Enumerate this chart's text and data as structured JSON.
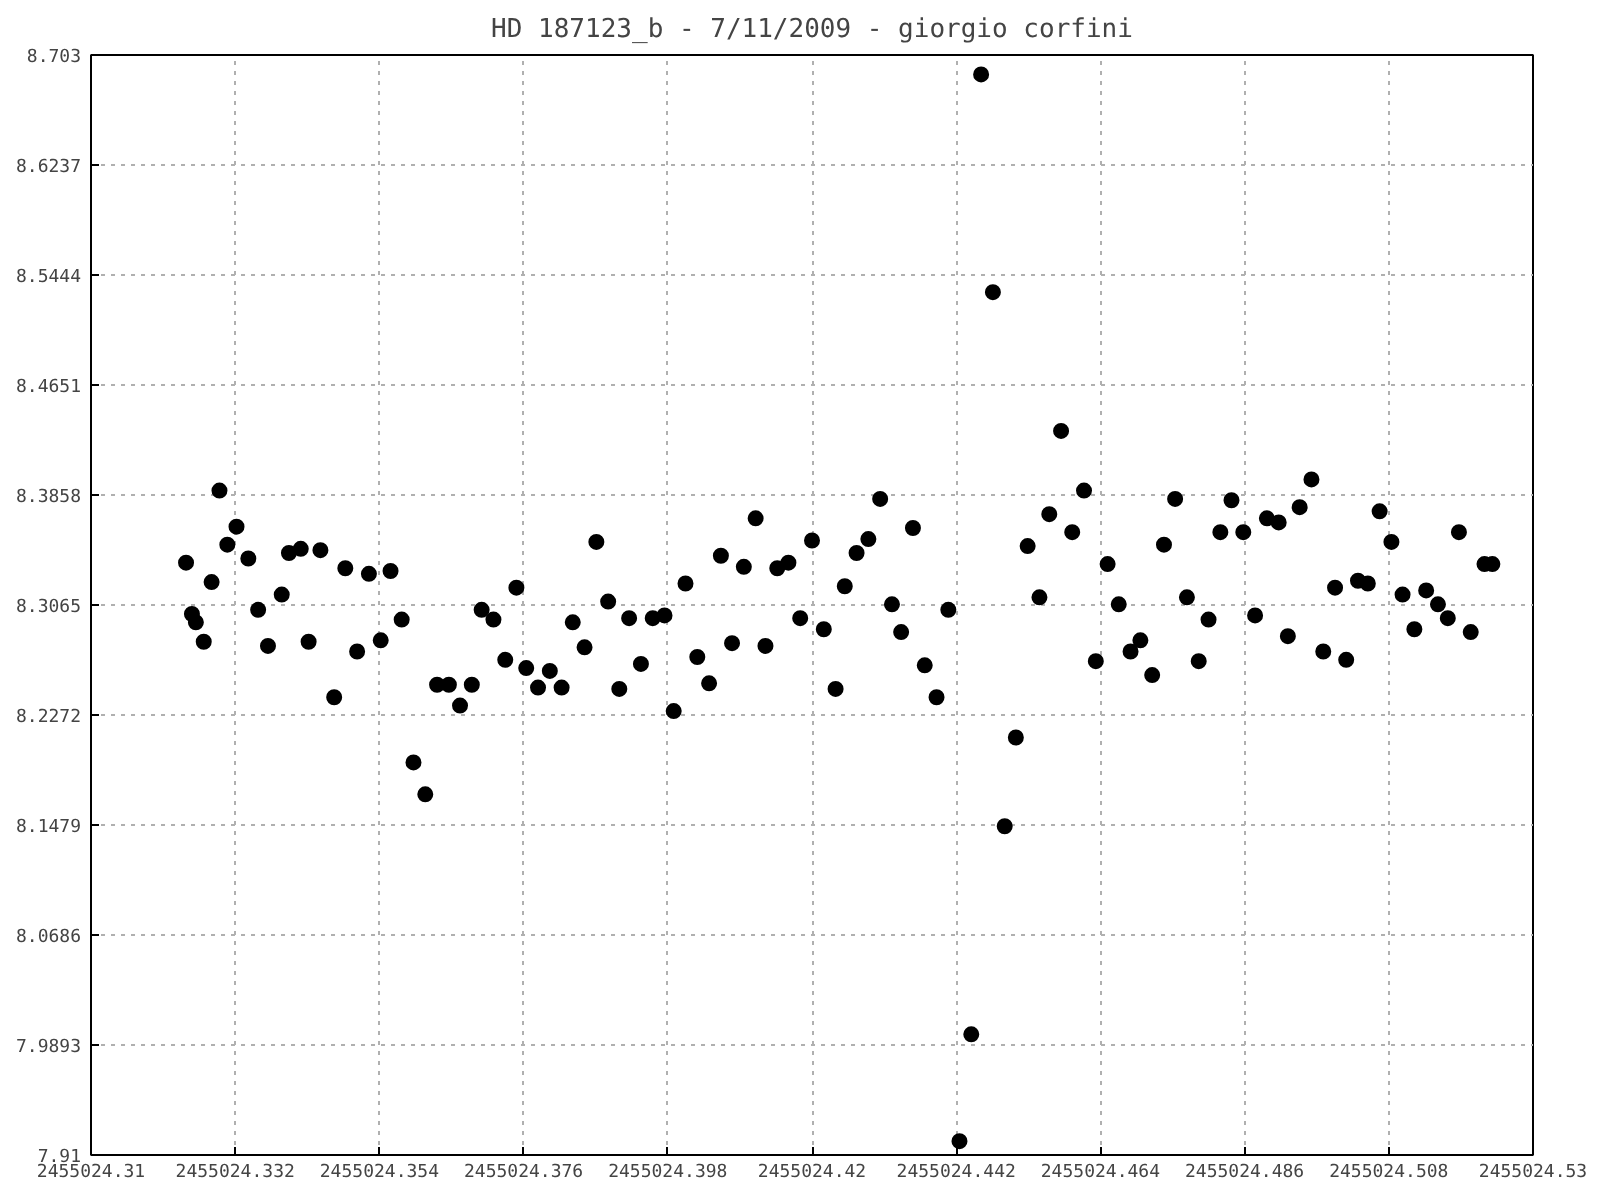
{
  "chart_data": {
    "type": "scatter",
    "title": "HD 187123_b - 7/11/2009 - giorgio corfini",
    "marker": "circle",
    "grid": true,
    "xlim": [
      2455024.31,
      2455024.53
    ],
    "xticks": [
      2455024.31,
      2455024.332,
      2455024.354,
      2455024.376,
      2455024.398,
      2455024.42,
      2455024.442,
      2455024.464,
      2455024.486,
      2455024.508,
      2455024.53
    ],
    "ylim": [
      7.91,
      8.703
    ],
    "yticks": [
      7.91,
      7.9893,
      8.0686,
      8.1479,
      8.2272,
      8.3065,
      8.3858,
      8.4651,
      8.5444,
      8.6237,
      8.703
    ],
    "series": [
      {
        "color": "#000000",
        "x": [
          2455024.3245,
          2455024.3254,
          2455024.326,
          2455024.3272,
          2455024.3284,
          2455024.3296,
          2455024.3308,
          2455024.3322,
          2455024.334,
          2455024.3355,
          2455024.337,
          2455024.3391,
          2455024.3402,
          2455024.342,
          2455024.3432,
          2455024.345,
          2455024.3471,
          2455024.3488,
          2455024.3506,
          2455024.3524,
          2455024.3542,
          2455024.3557,
          2455024.3574,
          2455024.3592,
          2455024.361,
          2455024.3628,
          2455024.3646,
          2455024.3663,
          2455024.3681,
          2455024.3696,
          2455024.3714,
          2455024.3732,
          2455024.3749,
          2455024.3764,
          2455024.3782,
          2455024.38,
          2455024.3818,
          2455024.3835,
          2455024.3853,
          2455024.3871,
          2455024.3889,
          2455024.3906,
          2455024.3921,
          2455024.3939,
          2455024.3957,
          2455024.3975,
          2455024.3989,
          2455024.4007,
          2455024.4025,
          2455024.4043,
          2455024.4061,
          2455024.4078,
          2455024.4096,
          2455024.4114,
          2455024.4129,
          2455024.4147,
          2455024.4164,
          2455024.4182,
          2455024.42,
          2455024.4218,
          2455024.4236,
          2455024.425,
          2455024.4268,
          2455024.4286,
          2455024.4304,
          2455024.4322,
          2455024.4336,
          2455024.4354,
          2455024.4372,
          2455024.439,
          2455024.4408,
          2455024.4425,
          2455024.4443,
          2455024.4458,
          2455024.4476,
          2455024.4494,
          2455024.4511,
          2455024.4529,
          2455024.4547,
          2455024.4562,
          2455024.458,
          2455024.4597,
          2455024.4615,
          2455024.4633,
          2455024.4651,
          2455024.4668,
          2455024.4686,
          2455024.4701,
          2455024.4719,
          2455024.4737,
          2455024.4754,
          2455024.4772,
          2455024.479,
          2455024.4805,
          2455024.4823,
          2455024.484,
          2455024.4858,
          2455024.4876,
          2455024.4894,
          2455024.4912,
          2455024.4926,
          2455024.4944,
          2455024.4962,
          2455024.498,
          2455024.4998,
          2455024.5015,
          2455024.5033,
          2455024.5048,
          2455024.5066,
          2455024.5084,
          2455024.5101,
          2455024.5119,
          2455024.5137,
          2455024.5155,
          2455024.517,
          2455024.5187,
          2455024.5205,
          2455024.5226,
          2455024.5238
        ],
        "values": [
          8.337,
          8.3,
          8.294,
          8.28,
          8.323,
          8.389,
          8.35,
          8.363,
          8.34,
          8.303,
          8.277,
          8.314,
          8.344,
          8.347,
          8.28,
          8.346,
          8.24,
          8.333,
          8.273,
          8.329,
          8.281,
          8.331,
          8.296,
          8.193,
          8.17,
          8.249,
          8.249,
          8.234,
          8.249,
          8.303,
          8.296,
          8.267,
          8.319,
          8.261,
          8.247,
          8.259,
          8.247,
          8.294,
          8.276,
          8.352,
          8.309,
          8.246,
          8.297,
          8.264,
          8.297,
          8.299,
          8.23,
          8.322,
          8.269,
          8.25,
          8.342,
          8.279,
          8.334,
          8.369,
          8.277,
          8.333,
          8.337,
          8.297,
          8.353,
          8.289,
          8.246,
          8.32,
          8.344,
          8.354,
          8.383,
          8.307,
          8.287,
          8.362,
          8.263,
          8.24,
          8.303,
          7.92,
          7.997,
          8.689,
          8.532,
          8.147,
          8.211,
          8.349,
          8.312,
          8.372,
          8.432,
          8.359,
          8.389,
          8.266,
          8.336,
          8.307,
          8.273,
          8.281,
          8.256,
          8.35,
          8.383,
          8.312,
          8.266,
          8.296,
          8.359,
          8.382,
          8.359,
          8.299,
          8.369,
          8.366,
          8.284,
          8.377,
          8.397,
          8.273,
          8.319,
          8.267,
          8.324,
          8.322,
          8.374,
          8.352,
          8.314,
          8.289,
          8.317,
          8.307,
          8.297,
          8.359,
          8.287,
          8.336,
          8.336
        ]
      }
    ]
  }
}
